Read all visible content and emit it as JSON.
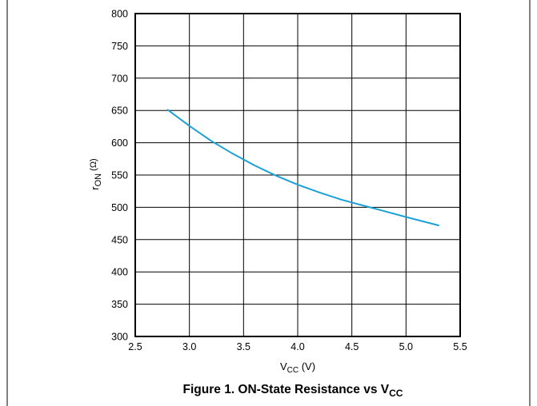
{
  "chart_data": {
    "type": "line",
    "caption": "Figure 1. ON-State Resistance vs V",
    "caption_subscript": "CC",
    "xlabel": "V",
    "xlabel_subscript": "CC",
    "xlabel_unit": " (V)",
    "ylabel": "r",
    "ylabel_subscript": "ON",
    "ylabel_unit": " (Ω)",
    "xlim": [
      2.5,
      5.5
    ],
    "ylim": [
      300,
      800
    ],
    "xticks": [
      "2.5",
      "3.0",
      "3.5",
      "4.0",
      "4.5",
      "5.0",
      "5.5"
    ],
    "yticks": [
      "300",
      "350",
      "400",
      "450",
      "500",
      "550",
      "600",
      "650",
      "700",
      "750",
      "800"
    ],
    "grid": true,
    "series": [
      {
        "color": "#1ba1d8",
        "x": [
          2.8,
          3.0,
          3.2,
          3.4,
          3.6,
          3.8,
          4.0,
          4.2,
          4.4,
          4.6,
          4.8,
          5.0,
          5.3
        ],
        "y": [
          651,
          626,
          603,
          583,
          565,
          549,
          535,
          523,
          512,
          503,
          494,
          485,
          472
        ]
      }
    ]
  }
}
